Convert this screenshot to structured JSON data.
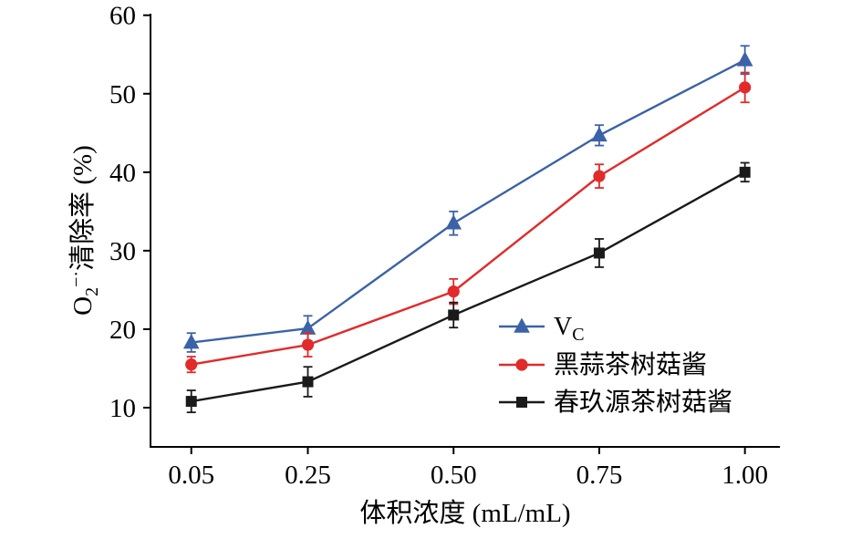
{
  "figure": {
    "background": "#ffffff",
    "axis_color": "#000000"
  },
  "chart_data": {
    "type": "line",
    "title": "",
    "xlabel": "体积浓度 (mL/mL)",
    "ylabel": "O2−·清除率 (%)",
    "ylabel_parts": {
      "pre": "O",
      "sub": "2",
      "sup": "−·",
      "post": "清除率 (%)"
    },
    "x": [
      0.05,
      0.25,
      0.5,
      0.75,
      1.0
    ],
    "x_tick_labels": [
      "0.05",
      "0.25",
      "0.50",
      "0.75",
      "1.00"
    ],
    "y_ticks": [
      10,
      20,
      30,
      40,
      50,
      60
    ],
    "xlim": [
      -0.02,
      1.06
    ],
    "ylim": [
      5,
      60.2
    ],
    "grid": false,
    "legend_position": "inside lower right",
    "series": [
      {
        "name": "Vc",
        "legend_label": "V",
        "legend_sub": "C",
        "marker": "triangle",
        "color": "#3b62a9",
        "values": [
          18.3,
          20.1,
          33.5,
          44.7,
          54.3
        ],
        "errors": [
          1.2,
          1.6,
          1.5,
          1.3,
          1.8
        ]
      },
      {
        "name": "黑蒜茶树菇酱",
        "legend_label": "黑蒜茶树菇酱",
        "legend_sub": "",
        "marker": "circle",
        "color": "#e22a2a",
        "values": [
          15.5,
          18.0,
          24.8,
          39.5,
          50.8
        ],
        "errors": [
          1.0,
          1.5,
          1.6,
          1.5,
          1.9
        ]
      },
      {
        "name": "春玖源茶树菇酱",
        "legend_label": "春玖源茶树菇酱",
        "legend_sub": "",
        "marker": "square",
        "color": "#1a1a1a",
        "values": [
          10.8,
          13.3,
          21.8,
          29.7,
          40.0
        ],
        "errors": [
          1.4,
          1.9,
          1.6,
          1.8,
          1.2
        ]
      }
    ]
  }
}
